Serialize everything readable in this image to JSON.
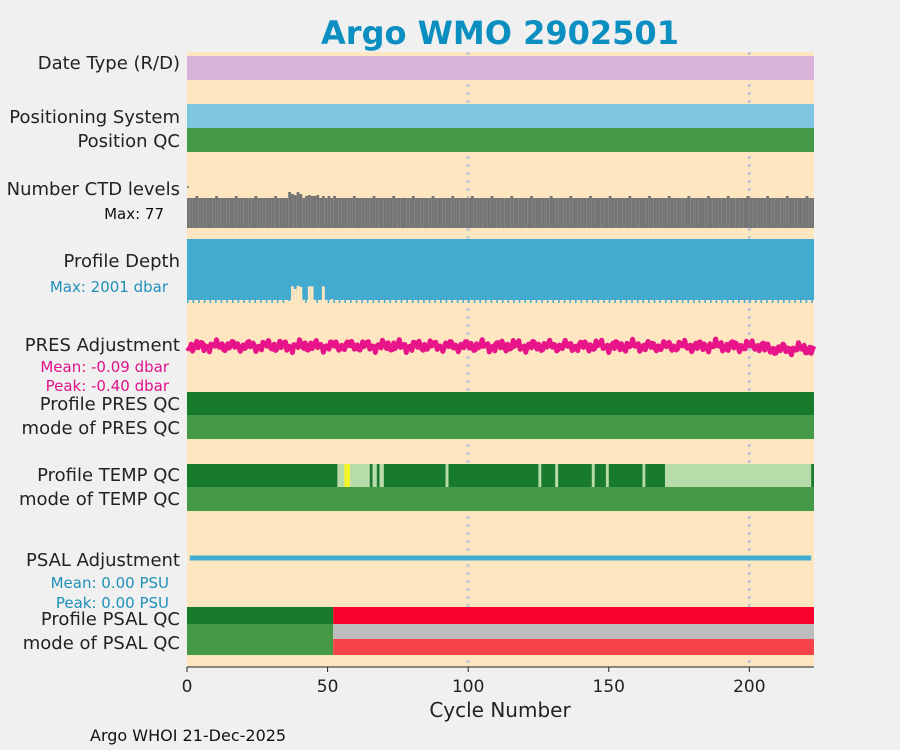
{
  "title": "Argo WMO 2902501",
  "footer": "Argo WHOI 21-Dec-2025",
  "colors": {
    "background": "#f0f0f0",
    "plot_bg": "#fde6c0",
    "title": "#0b8fc0",
    "date_type": "#d8b4d8",
    "positioning": "#7fc6e0",
    "good_dark": "#177a2c",
    "good": "#469a46",
    "light_green": "#b8dbaa",
    "yellow": "#f4f62a",
    "ctd": "#757575",
    "depth": "#43aad0",
    "pres_adj": "#e8158a",
    "psal_adj": "#43aad0",
    "red": "#f7022a",
    "grey": "#bdbdbd",
    "light_red": "#f84449",
    "grid": "#bfc8d4",
    "text": "#222222",
    "depth_label": "#1f90b8",
    "pres_label": "#e0128a"
  },
  "chart_data": {
    "type": "timeline",
    "xlabel": "Cycle Number",
    "xlim": [
      0,
      223
    ],
    "xticks": [
      0,
      50,
      100,
      150,
      200
    ],
    "grid_x": [
      100,
      200
    ],
    "rows": {
      "date_type": "Date Type (R/D)",
      "positioning": "Positioning System",
      "position_qc": "Position QC",
      "ctd": "Number CTD levels",
      "ctd_max": "Max: 77",
      "depth": "Profile Depth",
      "depth_max": "Max: 2001 dbar",
      "pres_adj": "PRES Adjustment",
      "pres_mean": "Mean: -0.09 dbar",
      "pres_peak": "Peak: -0.40 dbar",
      "pres_qc": "Profile PRES QC",
      "pres_mode": "mode of PRES QC",
      "temp_qc": "Profile TEMP QC",
      "temp_mode": "mode of TEMP QC",
      "psal_adj": "PSAL Adjustment",
      "psal_mean": "Mean: 0.00 PSU",
      "psal_peak": "Peak: 0.00 PSU",
      "psal_qc": "Profile PSAL QC",
      "psal_mode": "mode of PSAL QC"
    },
    "temp_qc_segments": [
      {
        "x0": 0,
        "x1": 53.5,
        "qc": "A"
      },
      {
        "x0": 53.5,
        "x1": 56,
        "qc": "C"
      },
      {
        "x0": 56,
        "x1": 58,
        "qc": "Y"
      },
      {
        "x0": 58,
        "x1": 65,
        "qc": "C"
      },
      {
        "x0": 65,
        "x1": 66,
        "qc": "A"
      },
      {
        "x0": 66,
        "x1": 67.5,
        "qc": "C"
      },
      {
        "x0": 67.5,
        "x1": 68.5,
        "qc": "A"
      },
      {
        "x0": 68.5,
        "x1": 70,
        "qc": "C"
      },
      {
        "x0": 70,
        "x1": 92,
        "qc": "A"
      },
      {
        "x0": 92,
        "x1": 93,
        "qc": "C"
      },
      {
        "x0": 93,
        "x1": 125,
        "qc": "A"
      },
      {
        "x0": 125,
        "x1": 126,
        "qc": "C"
      },
      {
        "x0": 126,
        "x1": 131,
        "qc": "A"
      },
      {
        "x0": 131,
        "x1": 132,
        "qc": "C"
      },
      {
        "x0": 132,
        "x1": 144,
        "qc": "A"
      },
      {
        "x0": 144,
        "x1": 145,
        "qc": "C"
      },
      {
        "x0": 145,
        "x1": 149,
        "qc": "A"
      },
      {
        "x0": 149,
        "x1": 150,
        "qc": "C"
      },
      {
        "x0": 150,
        "x1": 162,
        "qc": "A"
      },
      {
        "x0": 162,
        "x1": 163,
        "qc": "C"
      },
      {
        "x0": 163,
        "x1": 170,
        "qc": "A"
      },
      {
        "x0": 170,
        "x1": 222,
        "qc": "C"
      },
      {
        "x0": 222,
        "x1": 223,
        "qc": "A"
      }
    ],
    "psal_qc_segments": [
      {
        "x0": 0,
        "x1": 52,
        "qc": "A"
      },
      {
        "x0": 52,
        "x1": 223,
        "qc": "F"
      }
    ],
    "psal_mode_segments": [
      {
        "x0": 0,
        "x1": 52,
        "qc": "good"
      },
      {
        "x0": 52,
        "x1": 223,
        "qc": "mixed"
      }
    ],
    "depth_gaps": [
      {
        "x0": 36,
        "x1": 37,
        "depth": 1940
      },
      {
        "x0": 37,
        "x1": 38,
        "depth": 1480
      },
      {
        "x0": 38,
        "x1": 39,
        "depth": 1560
      },
      {
        "x0": 39,
        "x1": 40,
        "depth": 1460
      },
      {
        "x0": 40,
        "x1": 41,
        "depth": 1500
      },
      {
        "x0": 41,
        "x1": 42,
        "depth": 1900
      },
      {
        "x0": 43,
        "x1": 44,
        "depth": 1480
      },
      {
        "x0": 44,
        "x1": 45,
        "depth": 1480
      },
      {
        "x0": 45,
        "x1": 46,
        "depth": 1900
      },
      {
        "x0": 48,
        "x1": 49,
        "depth": 1480
      },
      {
        "x0": 49,
        "x1": 50,
        "depth": 1900
      },
      {
        "x0": 51,
        "x1": 52,
        "depth": 1880
      }
    ],
    "ctd_levels_range": [
      60,
      77
    ],
    "pres_adj_mean": -0.09,
    "pres_adj_peak": -0.4,
    "psal_adj_mean": 0.0,
    "psal_adj_peak": 0.0
  }
}
